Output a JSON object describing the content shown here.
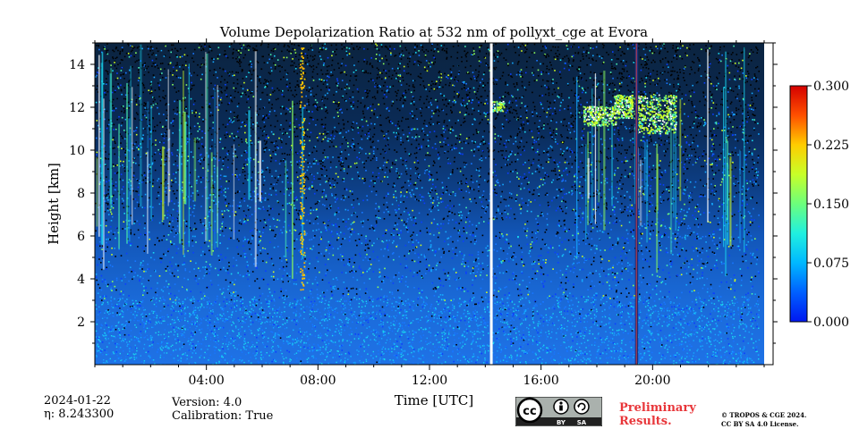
{
  "chart_data": {
    "type": "heatmap",
    "title": "Volume Depolarization Ratio at 532 nm of pollyxt_cge at Evora",
    "xlabel": "Time [UTC]",
    "ylabel": "Height [km]",
    "xlim": [
      "00:00",
      "24:00"
    ],
    "ylim": [
      0,
      15
    ],
    "x_ticks": [
      "04:00",
      "08:00",
      "12:00",
      "16:00",
      "20:00"
    ],
    "y_ticks": [
      2,
      4,
      6,
      8,
      10,
      12,
      14
    ],
    "colorbar": {
      "range": [
        0.0,
        0.3
      ],
      "ticks": [
        "0.000",
        "0.075",
        "0.150",
        "0.225",
        "0.300"
      ],
      "colormap": "jet",
      "placement": "right"
    },
    "data_gaps_utc": [
      "14:12",
      "19:25"
    ],
    "features": [
      {
        "time_utc": [
          "17:30",
          "20:50"
        ],
        "height_km": [
          10.8,
          12.6
        ],
        "value": "0.15-0.2"
      },
      {
        "time_utc": [
          "14:12",
          "14:40"
        ],
        "height_km": [
          11.8,
          12.3
        ],
        "value": "0.15"
      },
      {
        "time_utc": [
          "07:20",
          "07:30"
        ],
        "height_km": [
          3.5,
          14.8
        ],
        "value": "0.2-0.3"
      }
    ]
  },
  "footer": {
    "date": "2024-01-22",
    "eta_line": "η: 8.243300",
    "version": "Version: 4.0",
    "calibration": "Calibration: True",
    "preliminary": "Preliminary",
    "results": "Results.",
    "copyright_line1": "© TROPOS & CGE 2024.",
    "copyright_line2": "CC BY SA 4.0 License.",
    "license_cc": "cc",
    "license_by": "BY",
    "license_sa": "SA"
  },
  "colors": {
    "preliminary": "#e8363a",
    "license_badge_bg": "#aab1ad",
    "license_badge_dark": "#212121"
  },
  "icons": {
    "cc_logo": "cc-logo-icon",
    "by": "attribution-person-icon",
    "sa": "share-alike-icon"
  }
}
